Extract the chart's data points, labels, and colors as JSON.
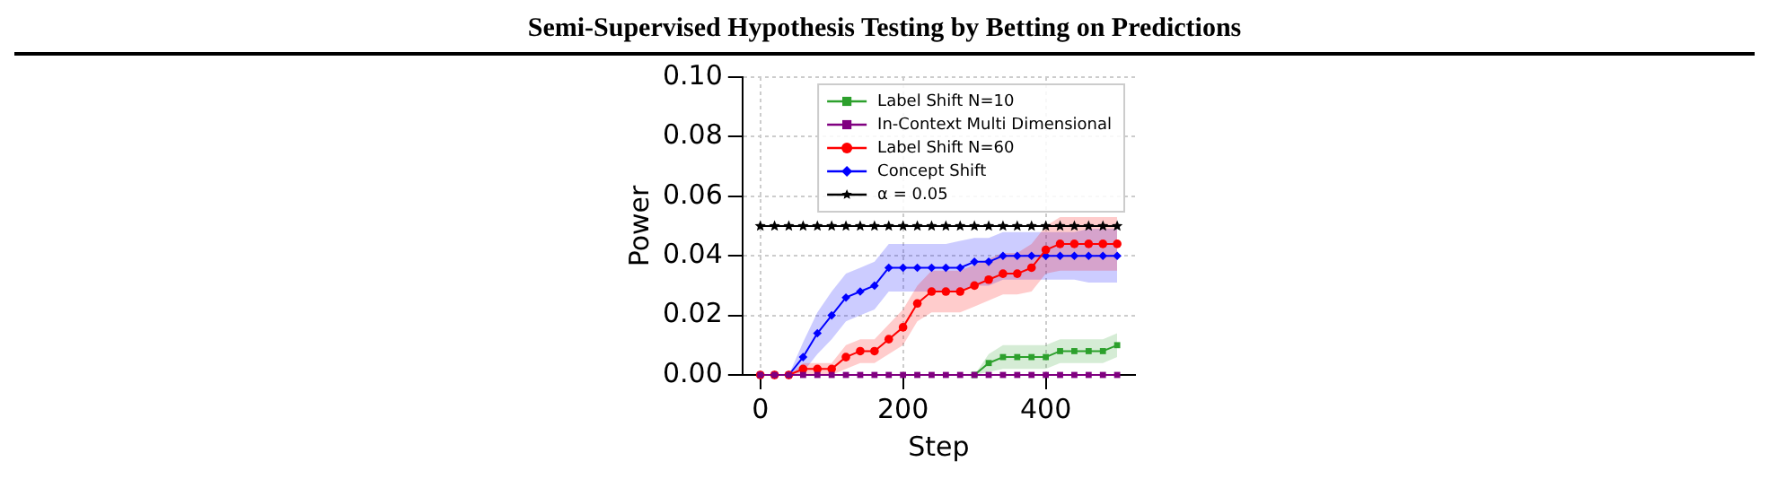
{
  "chart_data": {
    "type": "line",
    "title": "Semi-Supervised Hypothesis Testing by Betting on Predictions",
    "xlabel": "Step",
    "ylabel": "Power",
    "x": [
      0,
      20,
      40,
      60,
      80,
      100,
      120,
      140,
      160,
      180,
      200,
      220,
      240,
      260,
      280,
      300,
      320,
      340,
      360,
      380,
      400,
      420,
      440,
      460,
      480,
      500
    ],
    "xlim": [
      -25,
      525
    ],
    "xticks": [
      0,
      200,
      400
    ],
    "ylim": [
      0,
      0.1
    ],
    "yticks": [
      {
        "value": 0,
        "label": "0.00"
      },
      {
        "value": 0.02,
        "label": "0.02"
      },
      {
        "value": 0.04,
        "label": "0.04"
      },
      {
        "value": 0.06,
        "label": "0.06"
      },
      {
        "value": 0.08,
        "label": "0.08"
      },
      {
        "value": 0.1,
        "label": "0.10"
      }
    ],
    "grid": true,
    "legend": "top right",
    "line_style": "solid",
    "series": [
      {
        "name": "Label Shift N=10",
        "color": "#2ca02c",
        "marker": "square",
        "values": [
          null,
          null,
          null,
          null,
          null,
          null,
          null,
          null,
          null,
          null,
          null,
          null,
          null,
          null,
          null,
          0,
          0.004,
          0.006,
          0.006,
          0.006,
          0.006,
          0.008,
          0.008,
          0.008,
          0.008,
          0.01
        ],
        "lower": [
          null,
          null,
          null,
          null,
          null,
          null,
          null,
          null,
          null,
          null,
          null,
          null,
          null,
          null,
          null,
          0,
          0.001,
          0.002,
          0.002,
          0.002,
          0.002,
          0.004,
          0.004,
          0.004,
          0.004,
          0.006
        ],
        "upper": [
          null,
          null,
          null,
          null,
          null,
          null,
          null,
          null,
          null,
          null,
          null,
          null,
          null,
          null,
          null,
          0,
          0.007,
          0.01,
          0.01,
          0.01,
          0.01,
          0.012,
          0.012,
          0.012,
          0.012,
          0.014
        ]
      },
      {
        "name": "In-Context Multi Dimensional",
        "color": "#800080",
        "marker": "square",
        "values": [
          0,
          0,
          0,
          0,
          0,
          0,
          0,
          0,
          0,
          0,
          0,
          0,
          0,
          0,
          0,
          0,
          0,
          0,
          0,
          0,
          0,
          0,
          0,
          0,
          0,
          0
        ]
      },
      {
        "name": "Label Shift N=60",
        "color": "#ff0000",
        "marker": "circle",
        "values": [
          0,
          0,
          0,
          0.002,
          0.002,
          0.002,
          0.006,
          0.008,
          0.008,
          0.012,
          0.016,
          0.024,
          0.028,
          0.028,
          0.028,
          0.03,
          0.032,
          0.034,
          0.034,
          0.036,
          0.042,
          0.044,
          0.044,
          0.044,
          0.044,
          0.044
        ],
        "lower": [
          0,
          0,
          0,
          0,
          0,
          0,
          0.002,
          0.004,
          0.004,
          0.007,
          0.01,
          0.018,
          0.021,
          0.021,
          0.021,
          0.023,
          0.025,
          0.027,
          0.027,
          0.028,
          0.034,
          0.035,
          0.035,
          0.035,
          0.035,
          0.035
        ],
        "upper": [
          0,
          0,
          0,
          0.004,
          0.004,
          0.004,
          0.01,
          0.012,
          0.012,
          0.017,
          0.022,
          0.03,
          0.035,
          0.035,
          0.035,
          0.037,
          0.039,
          0.041,
          0.041,
          0.044,
          0.05,
          0.053,
          0.053,
          0.053,
          0.053,
          0.053
        ]
      },
      {
        "name": "Concept Shift",
        "color": "#0000ff",
        "marker": "diamond",
        "values": [
          0,
          0,
          0,
          0.006,
          0.014,
          0.02,
          0.026,
          0.028,
          0.03,
          0.036,
          0.036,
          0.036,
          0.036,
          0.036,
          0.036,
          0.038,
          0.038,
          0.04,
          0.04,
          0.04,
          0.04,
          0.04,
          0.04,
          0.04,
          0.04,
          0.04
        ],
        "lower": [
          0,
          0,
          0,
          0.001,
          0.007,
          0.012,
          0.018,
          0.02,
          0.022,
          0.028,
          0.028,
          0.028,
          0.028,
          0.028,
          0.028,
          0.03,
          0.03,
          0.032,
          0.032,
          0.032,
          0.032,
          0.032,
          0.032,
          0.031,
          0.031,
          0.031
        ],
        "upper": [
          0,
          0,
          0,
          0.011,
          0.021,
          0.028,
          0.034,
          0.036,
          0.038,
          0.044,
          0.044,
          0.044,
          0.044,
          0.044,
          0.045,
          0.046,
          0.046,
          0.048,
          0.048,
          0.048,
          0.048,
          0.048,
          0.048,
          0.049,
          0.049,
          0.049
        ]
      },
      {
        "name": "α = 0.05",
        "color": "#000000",
        "marker": "star",
        "values": [
          0.05,
          0.05,
          0.05,
          0.05,
          0.05,
          0.05,
          0.05,
          0.05,
          0.05,
          0.05,
          0.05,
          0.05,
          0.05,
          0.05,
          0.05,
          0.05,
          0.05,
          0.05,
          0.05,
          0.05,
          0.05,
          0.05,
          0.05,
          0.05,
          0.05,
          0.05
        ]
      }
    ]
  }
}
